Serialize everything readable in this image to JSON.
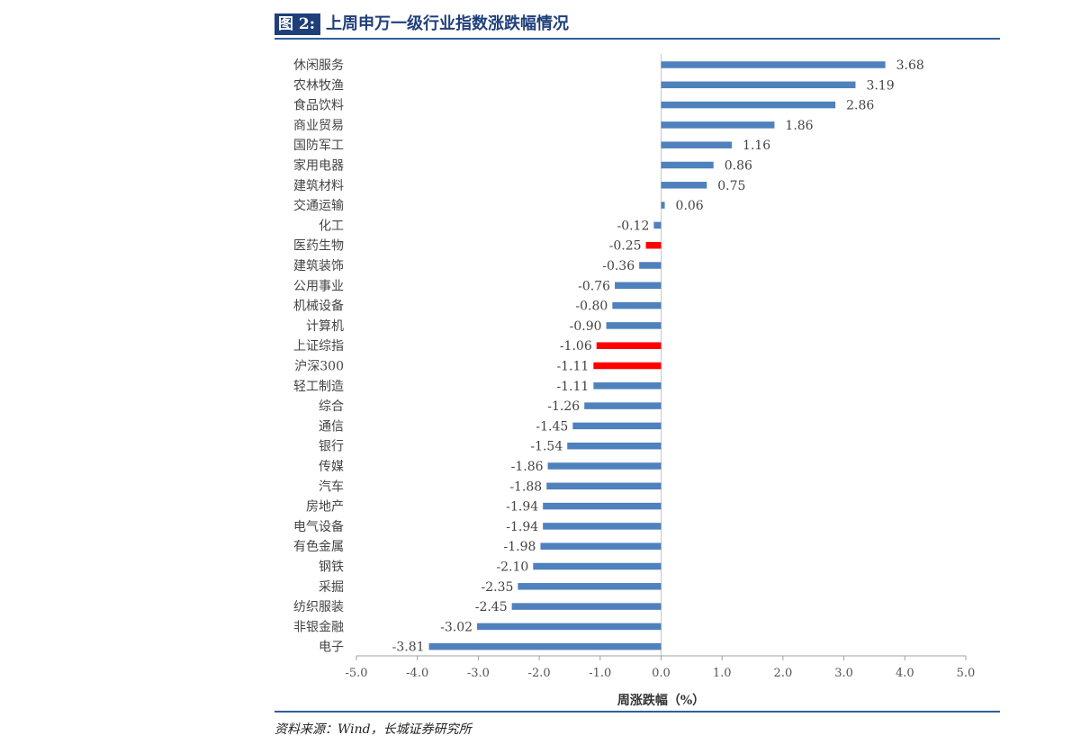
{
  "figure_label": "图 2:",
  "figure_title": "上周申万一级行业指数涨跌幅情况",
  "source": "资料来源：Wind，长城证券研究所",
  "colors": {
    "bar": "#4f81bd",
    "highlight": "#ff0000",
    "title": "#1f3f7a",
    "rule": "#2e5f9e"
  },
  "chart_data": {
    "type": "bar",
    "orientation": "horizontal",
    "title": "上周申万一级行业指数涨跌幅情况",
    "xlabel": "周涨跌幅（%）",
    "ylabel": "",
    "xlim": [
      -5.0,
      5.0
    ],
    "xticks": [
      "-5.0",
      "-4.0",
      "-3.0",
      "-2.0",
      "-1.0",
      "0.0",
      "1.0",
      "2.0",
      "3.0",
      "4.0",
      "5.0"
    ],
    "tick_values": [
      -5,
      -4,
      -3,
      -2,
      -1,
      0,
      1,
      2,
      3,
      4,
      5
    ],
    "grid": false,
    "categories": [
      "休闲服务",
      "农林牧渔",
      "食品饮料",
      "商业贸易",
      "国防军工",
      "家用电器",
      "建筑材料",
      "交通运输",
      "化工",
      "医药生物",
      "建筑装饰",
      "公用事业",
      "机械设备",
      "计算机",
      "上证综指",
      "沪深300",
      "轻工制造",
      "综合",
      "通信",
      "银行",
      "传媒",
      "汽车",
      "房地产",
      "电气设备",
      "有色金属",
      "钢铁",
      "采掘",
      "纺织服装",
      "非银金融",
      "电子"
    ],
    "values": [
      3.68,
      3.19,
      2.86,
      1.86,
      1.16,
      0.86,
      0.75,
      0.06,
      -0.12,
      -0.25,
      -0.36,
      -0.76,
      -0.8,
      -0.9,
      -1.06,
      -1.11,
      -1.11,
      -1.26,
      -1.45,
      -1.54,
      -1.86,
      -1.88,
      -1.94,
      -1.94,
      -1.98,
      -2.1,
      -2.35,
      -2.45,
      -3.02,
      -3.81
    ],
    "value_labels": [
      "3.68",
      "3.19",
      "2.86",
      "1.86",
      "1.16",
      "0.86",
      "0.75",
      "0.06",
      "-0.12",
      "-0.25",
      "-0.36",
      "-0.76",
      "-0.80",
      "-0.90",
      "-1.06",
      "-1.11",
      "-1.11",
      "-1.26",
      "-1.45",
      "-1.54",
      "-1.86",
      "-1.88",
      "-1.94",
      "-1.94",
      "-1.98",
      "-2.10",
      "-2.35",
      "-2.45",
      "-3.02",
      "-3.81"
    ],
    "highlighted": [
      "医药生物",
      "上证综指",
      "沪深300"
    ]
  }
}
